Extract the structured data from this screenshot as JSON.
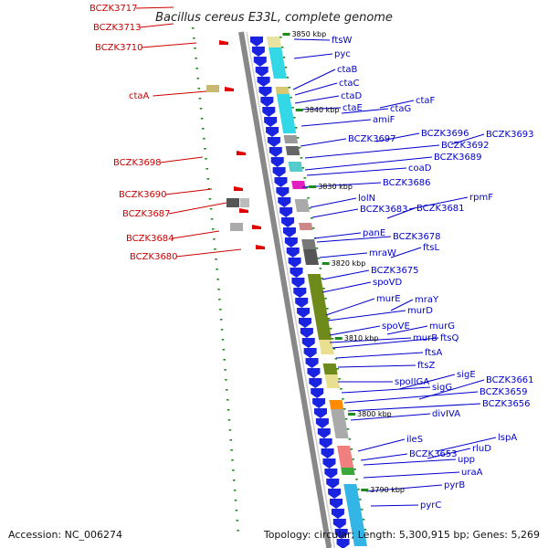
{
  "title": "Bacillus cereus E33L, complete genome",
  "footer": {
    "accession": "Accession: NC_006274",
    "topology": "Topology: circular; Length: 5,300,915 bp; Genes: 5,269"
  },
  "colors": {
    "reverse_label": "#cc0000",
    "forward_label": "#0000cc",
    "backbone": "#888888",
    "tick": "#1c8a1c"
  },
  "kbp_ticks": [
    "3850 kbp",
    "3840 kbp",
    "3830 kbp",
    "3820 kbp",
    "3810 kbp",
    "3800 kbp",
    "3790 kbp"
  ],
  "reverse_genes": [
    "BCZK3717",
    "BCZK3713",
    "BCZK3710",
    "ctaA",
    "BCZK3698",
    "BCZK3690",
    "BCZK3687",
    "BCZK3684",
    "BCZK3680"
  ],
  "forward_genes": [
    "ftsW",
    "pyc",
    "ctaB",
    "ctaC",
    "ctaD",
    "ctaE",
    "ctaG",
    "ctaF",
    "amiF",
    "BCZK3697",
    "BCZK3696",
    "BCZK3693",
    "BCZK3692",
    "BCZK3689",
    "coaD",
    "BCZK3686",
    "lolN",
    "rpmF",
    "BCZK3683",
    "BCZK3681",
    "panE",
    "BCZK3678",
    "mraW",
    "ftsL",
    "BCZK3675",
    "spoVD",
    "murE",
    "mraY",
    "murD",
    "spoVE",
    "murG",
    "murB",
    "ftsQ",
    "ftsA",
    "ftsZ",
    "spoIIGA",
    "sigE",
    "sigG",
    "BCZK3661",
    "BCZK3659",
    "BCZK3656",
    "divIVA",
    "ileS",
    "lspA",
    "BCZK3653",
    "rluD",
    "upp",
    "uraA",
    "pyrB",
    "pyrC"
  ]
}
